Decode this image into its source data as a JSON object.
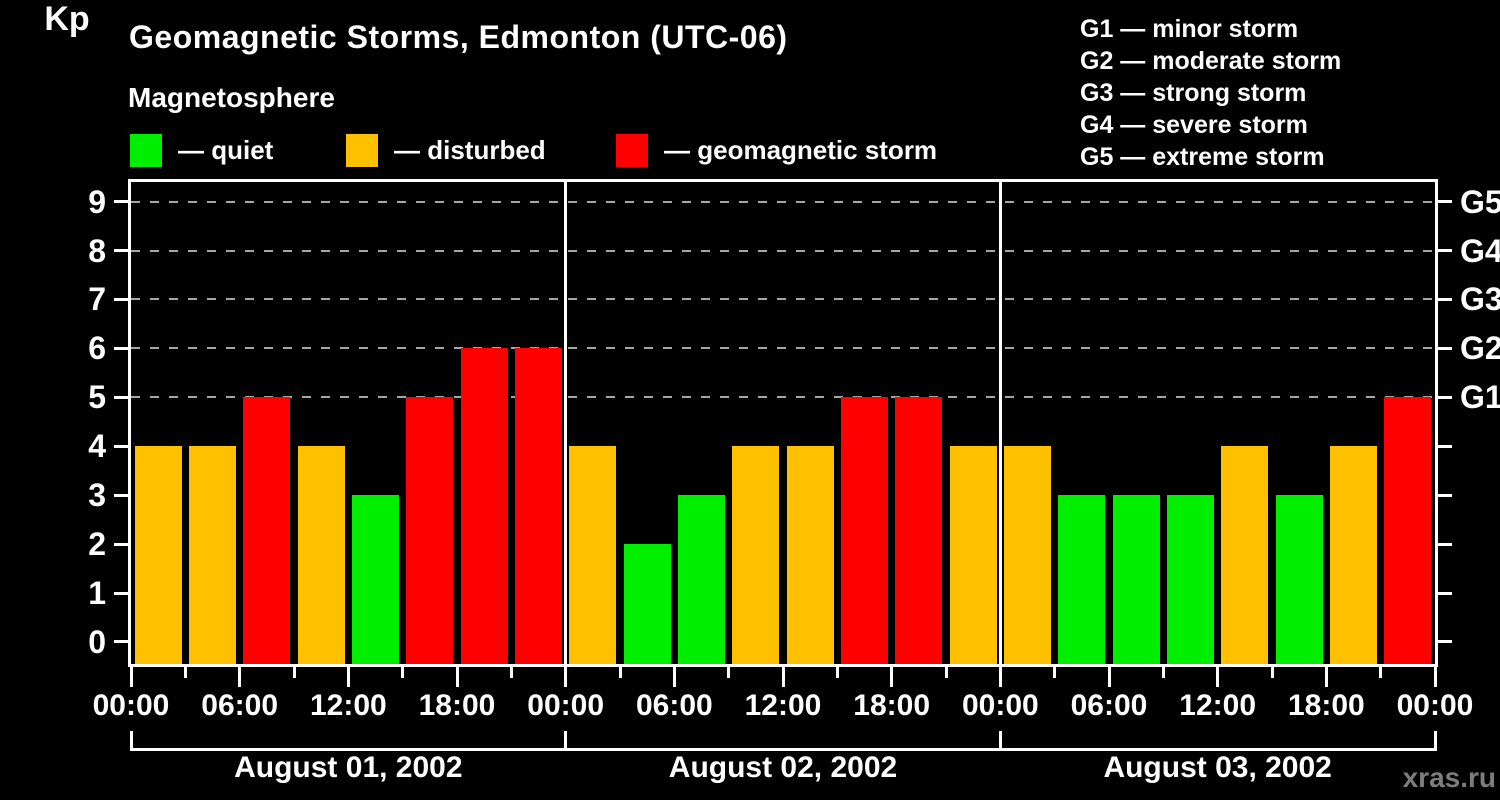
{
  "header": {
    "title": "Geomagnetic Storms, Edmonton (UTC-06)"
  },
  "legend": {
    "title": "Magnetosphere",
    "items": [
      {
        "name": "quiet",
        "label": "— quiet",
        "color": "#00ee00"
      },
      {
        "name": "disturbed",
        "label": "— disturbed",
        "color": "#ffc000"
      },
      {
        "name": "storm",
        "label": "— geomagnetic storm",
        "color": "#ff0000"
      }
    ]
  },
  "g_legend": {
    "items": [
      {
        "code": "G1",
        "label": "minor storm",
        "kp": 5
      },
      {
        "code": "G2",
        "label": "moderate storm",
        "kp": 6
      },
      {
        "code": "G3",
        "label": "strong storm",
        "kp": 7
      },
      {
        "code": "G4",
        "label": "severe storm",
        "kp": 8
      },
      {
        "code": "G5",
        "label": "extreme storm",
        "kp": 9
      }
    ],
    "separator": "—"
  },
  "axes": {
    "y_label": "Kp",
    "y_ticks": [
      "0",
      "1",
      "2",
      "3",
      "4",
      "5",
      "6",
      "7",
      "8",
      "9"
    ],
    "x_tick_labels": [
      "00:00",
      "06:00",
      "12:00",
      "18:00",
      "00:00",
      "06:00",
      "12:00",
      "18:00",
      "00:00",
      "06:00",
      "12:00",
      "18:00",
      "00:00"
    ]
  },
  "footer": {
    "watermark": "xras.ru"
  },
  "colors": {
    "background": "#000000",
    "text": "#ffffff",
    "axis": "#ffffff",
    "grid": "#a6a6a6",
    "quiet": "#00ee00",
    "disturbed": "#ffc000",
    "storm": "#ff0000",
    "watermark": "#7d7d7d"
  },
  "chart_data": {
    "type": "bar",
    "title": "Geomagnetic Storms, Edmonton (UTC-06)",
    "ylabel": "Kp",
    "ylim": [
      0,
      9
    ],
    "interval_hours": 3,
    "bars_per_day": 8,
    "gridlines_at": [
      5,
      6,
      7,
      8,
      9
    ],
    "grid_style": "dashed",
    "right_axis": "G-scale (G1=Kp5 ... G5=Kp9)",
    "legend_position": "top",
    "days": [
      {
        "date": "August 01, 2002",
        "kp": [
          4,
          4,
          5,
          4,
          3,
          5,
          6,
          6
        ]
      },
      {
        "date": "August 02, 2002",
        "kp": [
          4,
          2,
          3,
          4,
          4,
          5,
          5,
          4
        ]
      },
      {
        "date": "August 03, 2002",
        "kp": [
          4,
          3,
          3,
          3,
          4,
          3,
          4,
          5
        ]
      }
    ],
    "color_rule": {
      "quiet": "Kp <= 3",
      "disturbed": "Kp = 4",
      "storm": "Kp >= 5"
    }
  }
}
